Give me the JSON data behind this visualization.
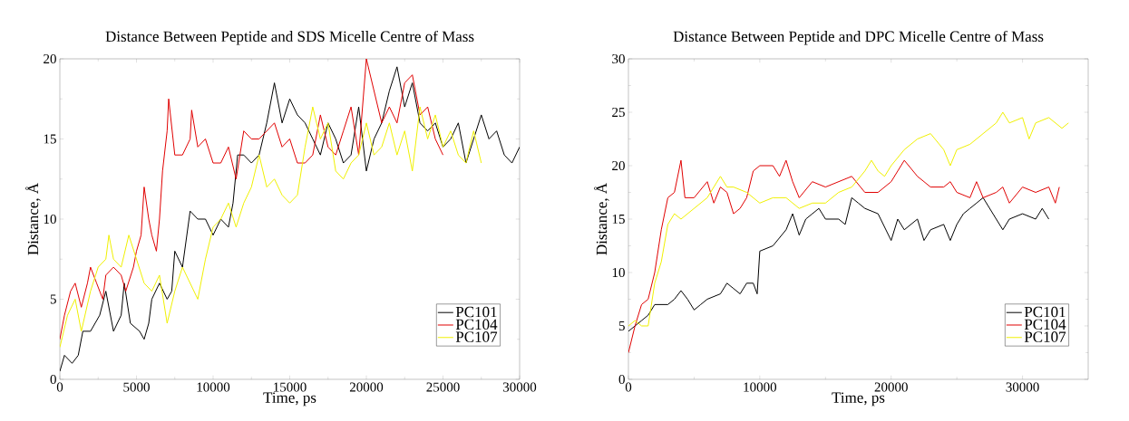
{
  "chart_data": [
    {
      "type": "line",
      "title": "Distance Between Peptide and SDS Micelle Centre of Mass",
      "xlabel": "Time, ps",
      "ylabel": "Distance, Å",
      "xlim": [
        0,
        30000
      ],
      "xticks": [
        0,
        5000,
        10000,
        15000,
        20000,
        25000,
        30000
      ],
      "ylim": [
        0,
        20
      ],
      "yticks": [
        0,
        5,
        10,
        15,
        20
      ],
      "grid": false,
      "legend": "bottom right",
      "marker": "none",
      "line_style": "solid",
      "series": [
        {
          "name": "PC101",
          "color": "#000000",
          "x": [
            0,
            300,
            800,
            1200,
            1500,
            2000,
            2600,
            3000,
            3500,
            4000,
            4200,
            4600,
            5200,
            5500,
            5800,
            6000,
            6500,
            7000,
            7300,
            7500,
            8000,
            8500,
            9000,
            9500,
            10000,
            10500,
            11000,
            11300,
            11600,
            12000,
            12500,
            13000,
            13500,
            14000,
            14500,
            15000,
            15500,
            16000,
            16500,
            17000,
            17500,
            18000,
            18500,
            19000,
            19500,
            20000,
            20500,
            21000,
            21500,
            22000,
            22500,
            23000,
            23500,
            24000,
            24500,
            25000,
            25500,
            26000,
            26500,
            27000,
            27500,
            28000,
            28500,
            29000,
            29500,
            30000
          ],
          "values": [
            0.5,
            1.5,
            1,
            1.5,
            3,
            3,
            4,
            5.5,
            3,
            4,
            6,
            3.5,
            3,
            2.5,
            3.5,
            5,
            6,
            5,
            5.5,
            8,
            7,
            10.5,
            10,
            10,
            9,
            10,
            9.5,
            11,
            14,
            14,
            13.5,
            14,
            16,
            18.5,
            16,
            17.5,
            16.5,
            16,
            15,
            14,
            16,
            15,
            13.5,
            14,
            17,
            13,
            15,
            16,
            18,
            19.5,
            17,
            18.5,
            16,
            15.5,
            16,
            14.5,
            15,
            16,
            13.5,
            15,
            16.5,
            15,
            15.5,
            14,
            13.5,
            14.5
          ]
        },
        {
          "name": "PC104",
          "color": "#e00000",
          "x": [
            0,
            300,
            700,
            1000,
            1400,
            1800,
            2000,
            2400,
            2800,
            3000,
            3500,
            4000,
            4300,
            4800,
            5000,
            5300,
            5500,
            5800,
            6000,
            6300,
            6500,
            6700,
            7000,
            7100,
            7500,
            8000,
            8500,
            8600,
            9000,
            9500,
            10000,
            10500,
            11000,
            11500,
            12000,
            12500,
            13000,
            13500,
            14000,
            14500,
            15000,
            15500,
            16000,
            16500,
            17000,
            17500,
            18000,
            18500,
            19000,
            19500,
            20000,
            20500,
            21000,
            21500,
            22000,
            22500,
            23000,
            23500,
            24000,
            24500,
            25000
          ],
          "values": [
            2.5,
            4,
            5.5,
            6,
            4.5,
            6,
            7,
            6,
            5,
            6.5,
            7,
            6.5,
            5.5,
            7,
            8,
            9,
            12,
            10,
            9,
            8,
            10,
            13,
            15.5,
            17.5,
            14,
            14,
            15,
            16.8,
            14.5,
            15,
            13.5,
            13.5,
            14.5,
            12.5,
            15.5,
            15,
            15,
            15.5,
            16,
            14.5,
            15,
            13.5,
            13.5,
            14,
            16.5,
            14.5,
            14,
            15.5,
            17,
            14,
            20,
            18,
            16,
            17,
            16,
            18.5,
            19,
            16.5,
            17,
            15,
            14
          ]
        },
        {
          "name": "PC107",
          "color": "#f0f000",
          "x": [
            0,
            500,
            1000,
            1400,
            2000,
            2500,
            3000,
            3200,
            3500,
            4000,
            4500,
            5000,
            5500,
            6000,
            6500,
            7000,
            7500,
            8000,
            8500,
            9000,
            9500,
            10000,
            10500,
            11000,
            11500,
            12000,
            12500,
            13000,
            13500,
            14000,
            14500,
            15000,
            15500,
            16000,
            16500,
            17000,
            17500,
            18000,
            18500,
            19000,
            19500,
            20000,
            20500,
            21000,
            21500,
            22000,
            22500,
            23000,
            23500,
            24000,
            24500,
            25000,
            25500,
            26000,
            26500,
            27000,
            27500
          ],
          "values": [
            2,
            4,
            5,
            3,
            5.5,
            7,
            7.5,
            9,
            7.5,
            7,
            9,
            7.5,
            6,
            5.5,
            6.5,
            3.5,
            5.5,
            7,
            6,
            5,
            7.5,
            9.5,
            10,
            11,
            9.5,
            11,
            12,
            14,
            12,
            12.5,
            11.5,
            11,
            11.5,
            14.5,
            17,
            15,
            16,
            13,
            12.5,
            13.5,
            14,
            16,
            14,
            14.5,
            16,
            14,
            15.5,
            13,
            17,
            15,
            16.5,
            14.5,
            15.5,
            14,
            13.5,
            15.5,
            13.5
          ]
        }
      ]
    },
    {
      "type": "line",
      "title": "Distance Between Peptide and DPC Micelle Centre of Mass",
      "xlabel": "Time, ps",
      "ylabel": "Distance, Å",
      "xlim": [
        0,
        35000
      ],
      "xticks": [
        0,
        10000,
        20000,
        30000
      ],
      "ylim": [
        0,
        30
      ],
      "yticks": [
        0,
        5,
        10,
        15,
        20,
        25,
        30
      ],
      "grid": false,
      "legend": "bottom right",
      "marker": "none",
      "line_style": "solid",
      "series": [
        {
          "name": "PC101",
          "color": "#000000",
          "x": [
            0,
            500,
            1000,
            1500,
            2000,
            3000,
            3500,
            4000,
            4500,
            5000,
            5500,
            6000,
            7000,
            7500,
            8000,
            8500,
            9000,
            9500,
            9800,
            10000,
            11000,
            12000,
            12500,
            13000,
            13500,
            14000,
            14500,
            15000,
            16000,
            16500,
            17000,
            17500,
            18000,
            19000,
            20000,
            20500,
            21000,
            22000,
            22500,
            23000,
            24000,
            24500,
            25000,
            25500,
            26000,
            26500,
            27000,
            28000,
            28500,
            29000,
            30000,
            31000,
            31500,
            32000
          ],
          "values": [
            4.5,
            5,
            5.5,
            6,
            7,
            7,
            7.5,
            8.3,
            7.5,
            6.5,
            7,
            7.5,
            8,
            9,
            8.5,
            8,
            9,
            9,
            8,
            12,
            12.5,
            14,
            15.5,
            13.5,
            15,
            15.5,
            16,
            15,
            15,
            14.5,
            17,
            16.5,
            16,
            15.5,
            13,
            15,
            14,
            15,
            13,
            14,
            14.5,
            13,
            14.5,
            15.5,
            16,
            16.5,
            17,
            15,
            14,
            15,
            15.5,
            15,
            16,
            15
          ]
        },
        {
          "name": "PC104",
          "color": "#e00000",
          "x": [
            0,
            500,
            1000,
            1500,
            2000,
            2500,
            3000,
            3500,
            4000,
            4300,
            5000,
            6000,
            6500,
            7000,
            7500,
            8000,
            8500,
            9000,
            9500,
            10000,
            11000,
            11500,
            12000,
            12500,
            13000,
            14000,
            15000,
            16000,
            17000,
            18000,
            19000,
            20000,
            21000,
            22000,
            23000,
            24000,
            24500,
            25000,
            26000,
            26500,
            27000,
            28000,
            28500,
            29000,
            30000,
            31000,
            32000,
            32500,
            32800
          ],
          "values": [
            2.5,
            5,
            7,
            7.5,
            10,
            14,
            17,
            17.5,
            20.5,
            17,
            17,
            18.5,
            16.5,
            18,
            17.5,
            15.5,
            16,
            17,
            19.5,
            20,
            20,
            19,
            20.5,
            18.5,
            17,
            18.5,
            18,
            18.5,
            19,
            17.5,
            17.5,
            18.5,
            20.5,
            19,
            18,
            18,
            18.5,
            17.5,
            17,
            18.5,
            17,
            17.5,
            18,
            16.5,
            18,
            17.5,
            18,
            16.5,
            18
          ]
        },
        {
          "name": "PC107",
          "color": "#f0f000",
          "x": [
            0,
            500,
            1000,
            1500,
            2000,
            2500,
            3000,
            3500,
            4000,
            5000,
            6000,
            7000,
            7500,
            8000,
            9000,
            10000,
            11000,
            12000,
            13000,
            14000,
            15000,
            16000,
            17000,
            18000,
            18500,
            19000,
            19500,
            20000,
            21000,
            22000,
            23000,
            24000,
            24500,
            25000,
            26000,
            27000,
            28000,
            28500,
            29000,
            30000,
            30500,
            31000,
            32000,
            33000,
            33500
          ],
          "values": [
            5,
            5.5,
            5,
            5,
            9,
            11,
            14.5,
            15.5,
            15,
            16,
            17,
            19,
            18,
            18,
            17.5,
            16.5,
            17,
            17,
            16,
            16.5,
            16.5,
            17.5,
            18,
            19.5,
            20.5,
            19.5,
            19,
            20,
            21.5,
            22.5,
            23,
            21.5,
            20,
            21.5,
            22,
            23,
            24,
            25,
            24,
            24.5,
            22.5,
            24,
            24.5,
            23.5,
            24
          ]
        }
      ]
    }
  ]
}
